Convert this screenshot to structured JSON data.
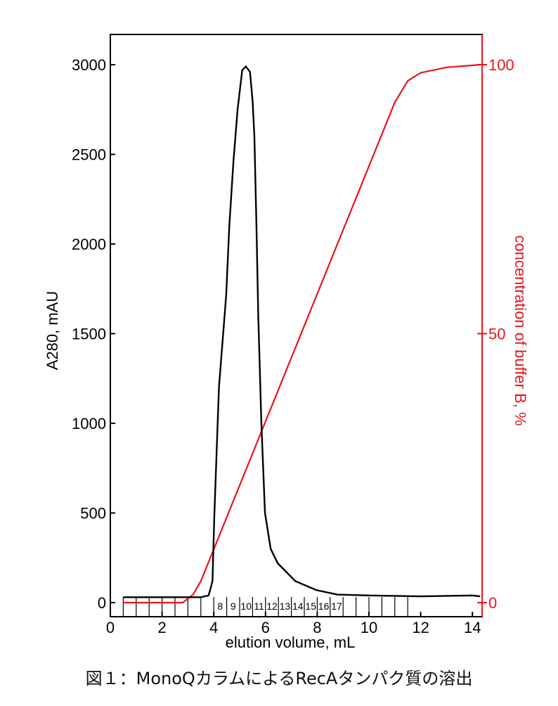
{
  "chart_data": {
    "type": "line",
    "xlabel": "elution volume, mL",
    "ylabel": "A280, mAU",
    "y2label": "concentration of buffer B, %",
    "xlim": [
      0,
      14.4
    ],
    "ylim": [
      0,
      3000
    ],
    "y2lim": [
      0,
      100
    ],
    "xticks": [
      0,
      2,
      4,
      6,
      8,
      10,
      12,
      14
    ],
    "yticks": [
      0,
      500,
      1000,
      1500,
      2000,
      2500,
      3000
    ],
    "y2ticks": [
      0,
      50,
      100
    ],
    "colors": {
      "a280": "#000000",
      "bufferB": "#e8141b"
    },
    "series": [
      {
        "name": "A280",
        "axis": "left",
        "x": [
          0.5,
          3.5,
          3.8,
          3.95,
          4.02,
          4.2,
          4.48,
          4.6,
          4.76,
          4.92,
          5.1,
          5.24,
          5.4,
          5.5,
          5.57,
          5.65,
          5.72,
          5.84,
          5.98,
          6.2,
          6.47,
          7.15,
          7.96,
          8.78,
          10,
          12,
          14,
          14.3
        ],
        "y": [
          30,
          30,
          40,
          120,
          480,
          1200,
          1715,
          2100,
          2460,
          2750,
          2970,
          2990,
          2960,
          2800,
          2600,
          2100,
          1600,
          1000,
          500,
          300,
          220,
          120,
          70,
          45,
          40,
          35,
          40,
          35
        ]
      },
      {
        "name": "buffer B",
        "axis": "right",
        "x": [
          0.5,
          2.8,
          3.2,
          3.5,
          11.0,
          11.5,
          12.0,
          13.0,
          14.3
        ],
        "y": [
          0,
          0,
          1.5,
          4,
          93,
          97,
          98.5,
          99.5,
          100
        ]
      }
    ],
    "fractions": {
      "boundaries": [
        0.5,
        1.0,
        1.5,
        2.0,
        2.5,
        3.0,
        3.5,
        4.0,
        4.5,
        5.0,
        5.5,
        6.0,
        6.5,
        7.0,
        7.5,
        8.0,
        8.5,
        9.0,
        9.5,
        10.0,
        10.5,
        11.0,
        11.5
      ],
      "labels": [
        "8",
        "9",
        "10",
        "11",
        "12",
        "13",
        "14",
        "15",
        "16",
        "17"
      ],
      "label_start": [
        4.0,
        4.5,
        5.0,
        5.5,
        6.0,
        6.5,
        7.0,
        7.5,
        8.0,
        8.5
      ]
    }
  },
  "caption": "図１：MonoQカラムによるRecAタンパク質の溶出"
}
